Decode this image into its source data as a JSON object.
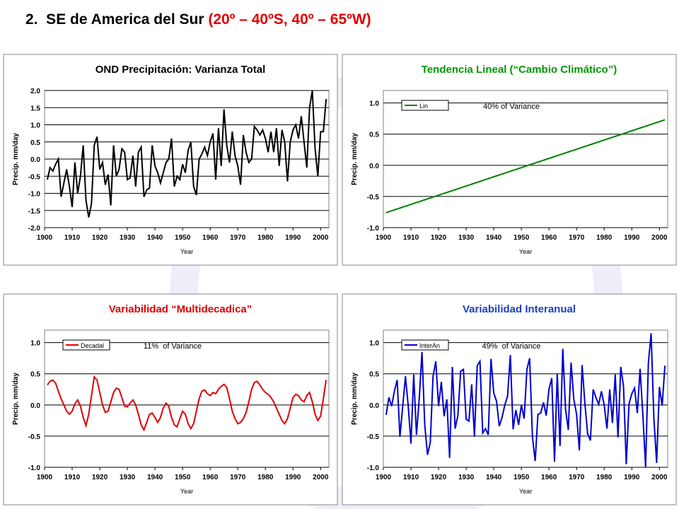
{
  "slide": {
    "title": "2.  SE de America del Sur",
    "title_region": "(20º – 40ºS, 40º – 65ºW)"
  },
  "chart_data": [
    {
      "type": "line",
      "title": "OND Precipitación: Varianza Total",
      "title_color": "#000000",
      "xlabel": "Year",
      "ylabel": "Precip. mm/day",
      "x": [
        1901,
        1902,
        1903,
        1904,
        1905,
        1906,
        1907,
        1908,
        1909,
        1910,
        1911,
        1912,
        1913,
        1914,
        1915,
        1916,
        1917,
        1918,
        1919,
        1920,
        1921,
        1922,
        1923,
        1924,
        1925,
        1926,
        1927,
        1928,
        1929,
        1930,
        1931,
        1932,
        1933,
        1934,
        1935,
        1936,
        1937,
        1938,
        1939,
        1940,
        1941,
        1942,
        1943,
        1944,
        1945,
        1946,
        1947,
        1948,
        1949,
        1950,
        1951,
        1952,
        1953,
        1954,
        1955,
        1956,
        1957,
        1958,
        1959,
        1960,
        1961,
        1962,
        1963,
        1964,
        1965,
        1966,
        1967,
        1968,
        1969,
        1970,
        1971,
        1972,
        1973,
        1974,
        1975,
        1976,
        1977,
        1978,
        1979,
        1980,
        1981,
        1982,
        1983,
        1984,
        1985,
        1986,
        1987,
        1988,
        1989,
        1990,
        1991,
        1992,
        1993,
        1994,
        1995,
        1996,
        1997,
        1998,
        1999,
        2000,
        2001,
        2002
      ],
      "series": [
        {
          "color": "#000000",
          "values": [
            -0.6,
            -0.25,
            -0.35,
            -0.15,
            0.0,
            -1.1,
            -0.7,
            -0.3,
            -0.8,
            -1.4,
            -0.1,
            -1.0,
            -0.5,
            0.4,
            -1.2,
            -1.7,
            -1.3,
            0.4,
            0.65,
            -0.3,
            -0.1,
            -0.75,
            -0.45,
            -1.35,
            0.4,
            -0.5,
            -0.3,
            0.3,
            0.2,
            -0.6,
            -0.55,
            0.1,
            -0.8,
            0.2,
            0.35,
            -1.1,
            -0.9,
            -0.85,
            0.4,
            -0.2,
            -0.4,
            -0.7,
            -0.4,
            -0.1,
            0.0,
            0.6,
            -0.8,
            -0.5,
            -0.6,
            -0.15,
            -0.4,
            0.25,
            0.5,
            -0.8,
            -1.05,
            0.0,
            0.15,
            0.35,
            0.1,
            0.5,
            0.75,
            -0.6,
            0.9,
            -0.2,
            1.45,
            0.4,
            -0.1,
            0.8,
            0.1,
            -0.2,
            -0.75,
            0.7,
            0.2,
            -0.1,
            0.0,
            0.95,
            0.85,
            0.7,
            0.85,
            0.6,
            0.2,
            0.8,
            0.2,
            0.9,
            -0.2,
            0.85,
            0.5,
            -0.65,
            0.5,
            0.85,
            1.0,
            0.6,
            1.25,
            0.5,
            -0.25,
            1.5,
            2.0,
            0.3,
            -0.5,
            0.8,
            0.8,
            1.75
          ]
        }
      ],
      "xlim": [
        1900,
        2003
      ],
      "xticks": [
        1900,
        1910,
        1920,
        1930,
        1940,
        1950,
        1960,
        1970,
        1980,
        1990,
        2000
      ],
      "ylim": [
        -2,
        2
      ],
      "yticks": [
        {
          "value": 2,
          "label": "2.0"
        },
        {
          "value": 1.5,
          "label": "1.5"
        },
        {
          "value": 1,
          "label": "1.0"
        },
        {
          "value": 0.5,
          "label": "0.5"
        },
        {
          "value": 0,
          "label": "0.0"
        },
        {
          "value": -0.5,
          "label": "-0.5"
        },
        {
          "value": -1,
          "label": "-1.0"
        },
        {
          "value": -1.5,
          "label": "-1.5"
        },
        {
          "value": -2,
          "label": "-2.0"
        }
      ],
      "grid": true
    },
    {
      "type": "line",
      "title": "Tendencia Lineal (“Cambio Climático”)",
      "title_color": "#009900",
      "xlabel": "Year",
      "ylabel": "Precip. mm/day",
      "annotation": "40% of Variance",
      "legend": "upper left",
      "x": [
        1901,
        2002
      ],
      "series": [
        {
          "name": "Lin",
          "color": "#008000",
          "values": [
            -0.76,
            0.73
          ]
        }
      ],
      "xlim": [
        1900,
        2003
      ],
      "xticks": [
        1900,
        1910,
        1920,
        1930,
        1940,
        1950,
        1960,
        1970,
        1980,
        1990,
        2000
      ],
      "ylim": [
        -1,
        1.2
      ],
      "yticks": [
        {
          "value": 1,
          "label": "1.0"
        },
        {
          "value": 0.5,
          "label": "0.5"
        },
        {
          "value": 0,
          "label": "0.0"
        },
        {
          "value": -0.5,
          "label": "-0.5"
        },
        {
          "value": -1,
          "label": "-1.0"
        }
      ],
      "grid": true
    },
    {
      "type": "line",
      "title": "Variabilidad “Multidecadica”",
      "title_color": "#e00000",
      "xlabel": "Year",
      "ylabel": "Precip. mm/day",
      "annotation": "11%  of Variance",
      "legend": "upper left",
      "x": [
        1901,
        1902,
        1903,
        1904,
        1905,
        1906,
        1907,
        1908,
        1909,
        1910,
        1911,
        1912,
        1913,
        1914,
        1915,
        1916,
        1917,
        1918,
        1919,
        1920,
        1921,
        1922,
        1923,
        1924,
        1925,
        1926,
        1927,
        1928,
        1929,
        1930,
        1931,
        1932,
        1933,
        1934,
        1935,
        1936,
        1937,
        1938,
        1939,
        1940,
        1941,
        1942,
        1943,
        1944,
        1945,
        1946,
        1947,
        1948,
        1949,
        1950,
        1951,
        1952,
        1953,
        1954,
        1955,
        1956,
        1957,
        1958,
        1959,
        1960,
        1961,
        1962,
        1963,
        1964,
        1965,
        1966,
        1967,
        1968,
        1969,
        1970,
        1971,
        1972,
        1973,
        1974,
        1975,
        1976,
        1977,
        1978,
        1979,
        1980,
        1981,
        1982,
        1983,
        1984,
        1985,
        1986,
        1987,
        1988,
        1989,
        1990,
        1991,
        1992,
        1993,
        1994,
        1995,
        1996,
        1997,
        1998,
        1999,
        2000,
        2001,
        2002
      ],
      "series": [
        {
          "name": "Decadal",
          "color": "#e00000",
          "values": [
            0.32,
            0.38,
            0.4,
            0.35,
            0.22,
            0.1,
            0.0,
            -0.1,
            -0.15,
            -0.1,
            0.02,
            0.08,
            -0.02,
            -0.2,
            -0.33,
            -0.15,
            0.15,
            0.45,
            0.4,
            0.2,
            0.0,
            -0.12,
            -0.1,
            0.05,
            0.2,
            0.27,
            0.25,
            0.12,
            -0.02,
            -0.03,
            0.03,
            0.08,
            0.0,
            -0.15,
            -0.32,
            -0.4,
            -0.28,
            -0.15,
            -0.13,
            -0.2,
            -0.28,
            -0.2,
            -0.05,
            0.03,
            -0.02,
            -0.2,
            -0.32,
            -0.35,
            -0.22,
            -0.1,
            -0.15,
            -0.3,
            -0.38,
            -0.3,
            -0.1,
            0.1,
            0.22,
            0.24,
            0.18,
            0.15,
            0.2,
            0.18,
            0.25,
            0.3,
            0.33,
            0.28,
            0.1,
            -0.1,
            -0.22,
            -0.3,
            -0.28,
            -0.22,
            -0.12,
            0.05,
            0.25,
            0.36,
            0.38,
            0.32,
            0.25,
            0.2,
            0.17,
            0.12,
            0.05,
            -0.05,
            -0.15,
            -0.25,
            -0.3,
            -0.22,
            -0.05,
            0.12,
            0.17,
            0.15,
            0.08,
            0.05,
            0.15,
            0.2,
            0.05,
            -0.15,
            -0.25,
            -0.18,
            0.1,
            0.4
          ]
        }
      ],
      "xlim": [
        1900,
        2003
      ],
      "xticks": [
        1900,
        1910,
        1920,
        1930,
        1940,
        1950,
        1960,
        1970,
        1980,
        1990,
        2000
      ],
      "ylim": [
        -1,
        1.2
      ],
      "yticks": [
        {
          "value": 1,
          "label": "1.0"
        },
        {
          "value": 0.5,
          "label": "0.5"
        },
        {
          "value": 0,
          "label": "0.0"
        },
        {
          "value": -0.5,
          "label": "-0.5"
        },
        {
          "value": -1,
          "label": "-1.0"
        }
      ],
      "grid": true
    },
    {
      "type": "line",
      "title": "Variabilidad Interanual",
      "title_color": "#1f3fbf",
      "xlabel": "Year",
      "ylabel": "Precip. mm/day",
      "annotation": "49%  of Variance",
      "legend": "upper left",
      "x": [
        1901,
        1902,
        1903,
        1904,
        1905,
        1906,
        1907,
        1908,
        1909,
        1910,
        1911,
        1912,
        1913,
        1914,
        1915,
        1916,
        1917,
        1918,
        1919,
        1920,
        1921,
        1922,
        1923,
        1924,
        1925,
        1926,
        1927,
        1928,
        1929,
        1930,
        1931,
        1932,
        1933,
        1934,
        1935,
        1936,
        1937,
        1938,
        1939,
        1940,
        1941,
        1942,
        1943,
        1944,
        1945,
        1946,
        1947,
        1948,
        1949,
        1950,
        1951,
        1952,
        1953,
        1954,
        1955,
        1956,
        1957,
        1958,
        1959,
        1960,
        1961,
        1962,
        1963,
        1964,
        1965,
        1966,
        1967,
        1968,
        1969,
        1970,
        1971,
        1972,
        1973,
        1974,
        1975,
        1976,
        1977,
        1978,
        1979,
        1980,
        1981,
        1982,
        1983,
        1984,
        1985,
        1986,
        1987,
        1988,
        1989,
        1990,
        1991,
        1992,
        1993,
        1994,
        1995,
        1996,
        1997,
        1998,
        1999,
        2000,
        2001,
        2002
      ],
      "series": [
        {
          "name": "InterAn",
          "color": "#0000cc",
          "values": [
            -0.16,
            0.12,
            -0.02,
            0.22,
            0.4,
            -0.51,
            -0.03,
            0.46,
            -0.01,
            -0.62,
            0.49,
            -0.48,
            0.1,
            0.85,
            -0.32,
            -0.8,
            -0.6,
            0.46,
            0.7,
            -0.02,
            0.37,
            -0.18,
            0.09,
            -0.85,
            0.61,
            -0.38,
            -0.17,
            0.54,
            0.57,
            -0.23,
            -0.26,
            0.33,
            -0.51,
            0.63,
            0.7,
            -0.45,
            -0.38,
            -0.48,
            0.74,
            0.19,
            0.06,
            -0.34,
            -0.2,
            0.0,
            0.14,
            0.8,
            -0.39,
            -0.08,
            -0.32,
            0.0,
            -0.22,
            0.57,
            0.75,
            -0.51,
            -0.9,
            -0.15,
            -0.13,
            0.04,
            -0.17,
            0.25,
            0.43,
            -0.91,
            0.5,
            -0.66,
            0.9,
            -0.07,
            -0.4,
            0.68,
            0.09,
            -0.15,
            -0.73,
            0.64,
            0.03,
            -0.46,
            -0.57,
            0.25,
            0.12,
            0.01,
            0.22,
            0.0,
            -0.38,
            0.25,
            -0.29,
            0.49,
            -0.52,
            0.61,
            0.3,
            -0.95,
            0.02,
            0.18,
            0.27,
            -0.13,
            0.58,
            -0.15,
            -1.0,
            0.67,
            1.15,
            -0.21,
            -0.93,
            0.29,
            -0.01,
            0.63
          ]
        }
      ],
      "xlim": [
        1900,
        2003
      ],
      "xticks": [
        1900,
        1910,
        1920,
        1930,
        1940,
        1950,
        1960,
        1970,
        1980,
        1990,
        2000
      ],
      "ylim": [
        -1,
        1.2
      ],
      "yticks": [
        {
          "value": 1,
          "label": "1.0"
        },
        {
          "value": 0.5,
          "label": "0.5"
        },
        {
          "value": 0,
          "label": "0.0"
        },
        {
          "value": -0.5,
          "label": "-0.5"
        },
        {
          "value": -1,
          "label": "-1.0"
        }
      ],
      "grid": true
    }
  ]
}
